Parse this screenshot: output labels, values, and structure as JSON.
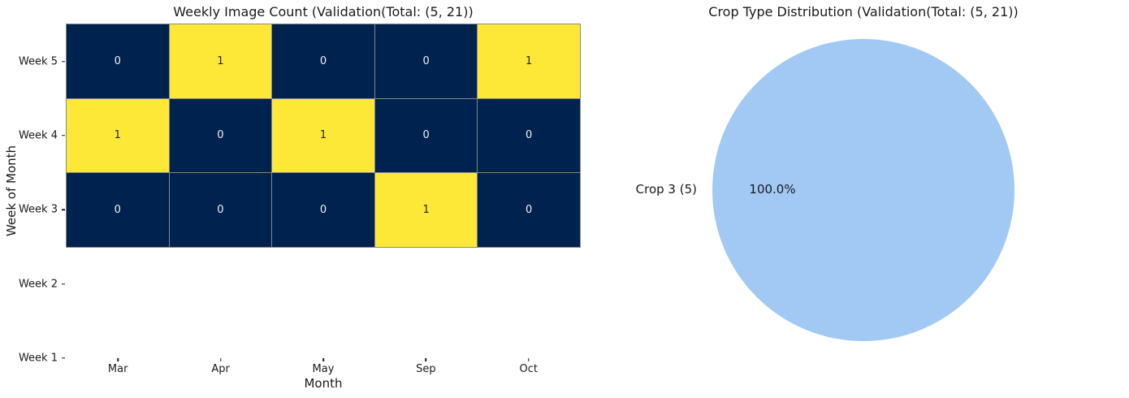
{
  "figure": {
    "background_color": "#ffffff"
  },
  "chart_data": [
    {
      "type": "heatmap",
      "title": "Weekly Image Count (Validation(Total: (5, 21))",
      "xlabel": "Month",
      "ylabel": "Week of Month",
      "x_categories": [
        "Mar",
        "Apr",
        "May",
        "Sep",
        "Oct"
      ],
      "y_tick_labels": [
        "Week 5",
        "Week 4",
        "Week 3",
        "Week 2",
        "Week 1"
      ],
      "rows": [
        {
          "label": "Week 5",
          "values": [
            0,
            1,
            0,
            0,
            1
          ]
        },
        {
          "label": "Week 4",
          "values": [
            1,
            0,
            1,
            0,
            0
          ]
        },
        {
          "label": "Week 3",
          "values": [
            0,
            0,
            0,
            1,
            0
          ]
        }
      ],
      "empty_row_labels": [
        "Week 2",
        "Week 1"
      ],
      "value_range": [
        0,
        1
      ],
      "grid_on": true,
      "colors": {
        "low": "#00224e",
        "high": "#fde838",
        "grid_line": "#878787",
        "annot_on_low": "#f2f2f2",
        "annot_on_high": "#262626"
      }
    },
    {
      "type": "pie",
      "title": "Crop Type Distribution (Validation(Total: (5, 21))",
      "legend_position": "none",
      "slices": [
        {
          "label": "Crop 3 (5)",
          "value": 5,
          "percent": 100.0,
          "pct_label": "100.0%",
          "color": "#a1c9f4"
        }
      ]
    }
  ]
}
